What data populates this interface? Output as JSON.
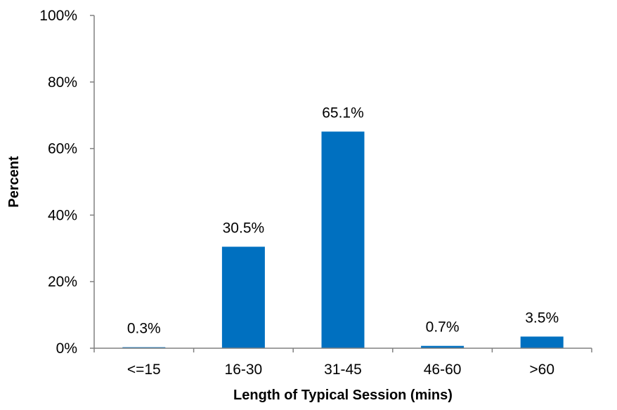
{
  "chart_data": {
    "type": "bar",
    "categories": [
      "<=15",
      "16-30",
      "31-45",
      "46-60",
      ">60"
    ],
    "values": [
      0.3,
      30.5,
      65.1,
      0.7,
      3.5
    ],
    "data_labels": [
      "0.3%",
      "30.5%",
      "65.1%",
      "0.7%",
      "3.5%"
    ],
    "title": "",
    "xlabel": "Length of Typical Session (mins)",
    "ylabel": "Percent",
    "ylim": [
      0,
      100
    ],
    "yticks": [
      0,
      20,
      40,
      60,
      80,
      100
    ],
    "ytick_labels": [
      "0%",
      "20%",
      "40%",
      "60%",
      "80%",
      "100%"
    ],
    "grid": false,
    "legend": "none",
    "colors": {
      "bar": "#0070C0",
      "axis": "#808080",
      "text": "#000000"
    }
  }
}
